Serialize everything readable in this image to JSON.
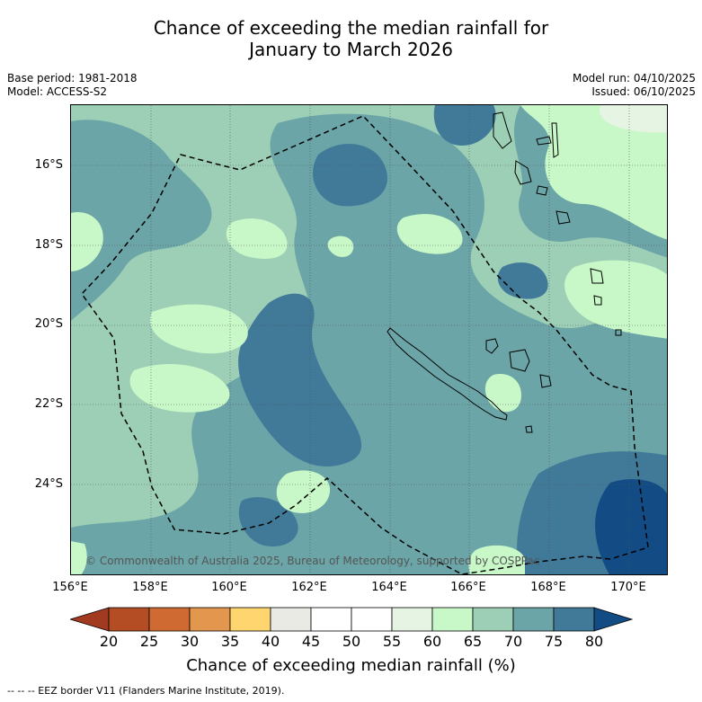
{
  "title": {
    "line1": "Chance of exceeding the median rainfall for",
    "line2": "January to March 2026"
  },
  "meta": {
    "base_period": "Base period: 1981-2018",
    "model": "Model: ACCESS-S2",
    "model_run": "Model run: 04/10/2025",
    "issued": "Issued: 06/10/2025"
  },
  "map": {
    "lat_labels": [
      "16°S",
      "18°S",
      "20°S",
      "22°S",
      "24°S"
    ],
    "lon_labels": [
      "156°E",
      "158°E",
      "160°E",
      "162°E",
      "164°E",
      "166°E",
      "168°E",
      "170°E"
    ],
    "copyright": "© Commonwealth of Australia 2025, Bureau of Meteorology, supported by COSPPac",
    "colors": {
      "c55_60": "#e6f5e3",
      "c60_65": "#c8f8c8",
      "c65_70": "#9ccfb6",
      "c70_75": "#6ba5a7",
      "c75_80": "#417a99",
      "c80_plus": "#134c85"
    }
  },
  "colorbar": {
    "ticks": [
      "20",
      "25",
      "30",
      "35",
      "40",
      "45",
      "50",
      "55",
      "60",
      "65",
      "70",
      "75",
      "80"
    ],
    "colors": [
      "#a23a1f",
      "#b44d24",
      "#d06a33",
      "#e3964d",
      "#fed56e",
      "#eaeae4",
      "#ffffff",
      "#ffffff",
      "#e6f5e3",
      "#c8f8c8",
      "#9ccfb6",
      "#6ba5a7",
      "#417a99",
      "#134c85"
    ],
    "label": "Chance of exceeding median rainfall (%)"
  },
  "footnote": "--  --  -- EEZ border V11 (Flanders Marine Institute, 2019)."
}
